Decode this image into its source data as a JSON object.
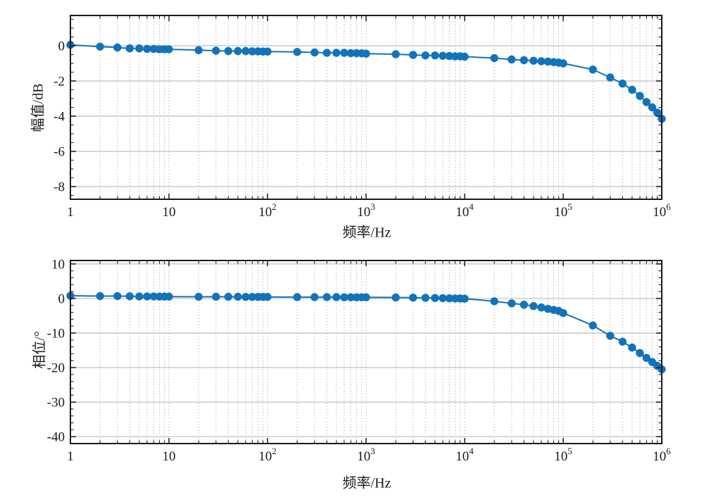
{
  "figure": {
    "background": "#ffffff",
    "accent_color": "#1373ba",
    "grid_major_color": "#bdbdbd",
    "grid_minor_color": "#a8a8a8",
    "axis_color": "#1a1a1a"
  },
  "chart_data": [
    {
      "id": "magnitude",
      "type": "line",
      "x_scale": "log",
      "title": "",
      "xlabel": "频率/Hz",
      "ylabel": "幅值/dB",
      "xlim": [
        1,
        1000000
      ],
      "ylim": [
        -8.72,
        1.72
      ],
      "yticks": [
        0,
        -2,
        -4,
        -6,
        -8
      ],
      "y_minor_step": 0.5,
      "xticks": {
        "values": [
          1,
          10,
          100,
          1000,
          10000,
          100000,
          1000000
        ],
        "labels": [
          {
            "text": "1"
          },
          {
            "text": "10"
          },
          {
            "text": "10",
            "sup": "2"
          },
          {
            "text": "10",
            "sup": "3"
          },
          {
            "text": "10",
            "sup": "4"
          },
          {
            "text": "10",
            "sup": "5"
          },
          {
            "text": "10",
            "sup": "6"
          }
        ]
      },
      "grid": {
        "horizontal": "solid",
        "vertical": "dotted",
        "x_minor_grid": true
      },
      "legend": "none",
      "series": [
        {
          "name": "magnitude-response",
          "color": "#1373ba",
          "marker": "circle",
          "x": [
            1,
            2,
            3,
            4,
            5,
            6,
            7,
            8,
            9,
            10,
            20,
            30,
            40,
            50,
            60,
            70,
            80,
            90,
            100,
            200,
            300,
            400,
            500,
            600,
            700,
            800,
            900,
            1000,
            2000,
            3000,
            4000,
            5000,
            6000,
            7000,
            8000,
            9000,
            10000,
            20000,
            30000,
            40000,
            50000,
            60000,
            70000,
            80000,
            90000,
            100000,
            200000,
            300000,
            400000,
            500000,
            600000,
            700000,
            800000,
            900000,
            1000000
          ],
          "y": [
            0.05,
            -0.05,
            -0.1,
            -0.15,
            -0.15,
            -0.18,
            -0.18,
            -0.2,
            -0.2,
            -0.2,
            -0.25,
            -0.28,
            -0.3,
            -0.3,
            -0.3,
            -0.32,
            -0.32,
            -0.33,
            -0.33,
            -0.35,
            -0.38,
            -0.4,
            -0.4,
            -0.4,
            -0.42,
            -0.42,
            -0.43,
            -0.45,
            -0.48,
            -0.52,
            -0.55,
            -0.55,
            -0.57,
            -0.58,
            -0.6,
            -0.6,
            -0.62,
            -0.7,
            -0.78,
            -0.82,
            -0.85,
            -0.88,
            -0.9,
            -0.93,
            -0.96,
            -1.0,
            -1.35,
            -1.8,
            -2.15,
            -2.5,
            -2.85,
            -3.2,
            -3.5,
            -3.8,
            -4.15
          ]
        }
      ]
    },
    {
      "id": "phase",
      "type": "line",
      "x_scale": "log",
      "title": "",
      "xlabel": "频率/Hz",
      "ylabel": "相位/°",
      "xlim": [
        1,
        1000000
      ],
      "ylim": [
        -42,
        11
      ],
      "yticks": [
        10,
        0,
        -10,
        -20,
        -30,
        -40
      ],
      "y_minor_step": 2,
      "xticks": {
        "values": [
          1,
          10,
          100,
          1000,
          10000,
          100000,
          1000000
        ],
        "labels": [
          {
            "text": "1"
          },
          {
            "text": "10"
          },
          {
            "text": "10",
            "sup": "2"
          },
          {
            "text": "10",
            "sup": "3"
          },
          {
            "text": "10",
            "sup": "4"
          },
          {
            "text": "10",
            "sup": "5"
          },
          {
            "text": "10",
            "sup": "6"
          }
        ]
      },
      "grid": {
        "horizontal": "solid",
        "vertical": "dotted",
        "x_minor_grid": true
      },
      "legend": "none",
      "series": [
        {
          "name": "phase-response",
          "color": "#1373ba",
          "marker": "circle",
          "x": [
            1,
            2,
            3,
            4,
            5,
            6,
            7,
            8,
            9,
            10,
            20,
            30,
            40,
            50,
            60,
            70,
            80,
            90,
            100,
            200,
            300,
            400,
            500,
            600,
            700,
            800,
            900,
            1000,
            2000,
            3000,
            4000,
            5000,
            6000,
            7000,
            8000,
            9000,
            10000,
            20000,
            30000,
            40000,
            50000,
            60000,
            70000,
            80000,
            90000,
            100000,
            200000,
            300000,
            400000,
            500000,
            600000,
            700000,
            800000,
            900000,
            1000000
          ],
          "y": [
            0.8,
            0.7,
            0.7,
            0.65,
            0.6,
            0.6,
            0.6,
            0.55,
            0.55,
            0.55,
            0.5,
            0.5,
            0.5,
            0.5,
            0.45,
            0.45,
            0.45,
            0.45,
            0.45,
            0.4,
            0.4,
            0.4,
            0.4,
            0.35,
            0.35,
            0.35,
            0.35,
            0.35,
            0.3,
            0.25,
            0.2,
            0.15,
            0.1,
            0.05,
            0.0,
            0.0,
            -0.05,
            -0.8,
            -1.4,
            -1.8,
            -2.2,
            -2.6,
            -3.0,
            -3.3,
            -3.6,
            -4.2,
            -7.8,
            -10.8,
            -12.5,
            -14.2,
            -15.8,
            -17.2,
            -18.4,
            -19.5,
            -20.5
          ]
        }
      ]
    }
  ]
}
